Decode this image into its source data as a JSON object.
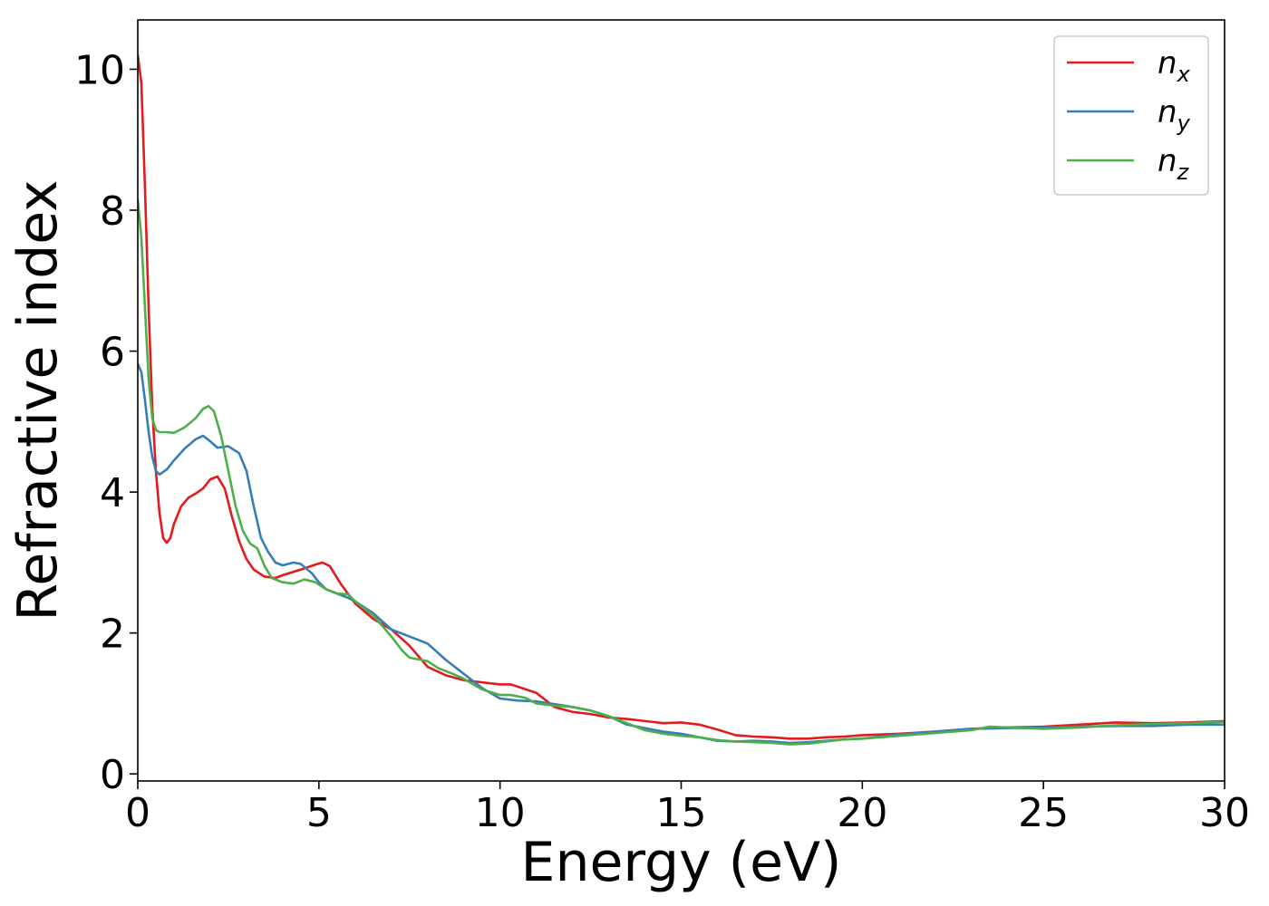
{
  "chart_data": {
    "type": "line",
    "title": "",
    "xlabel": "Energy (eV)",
    "ylabel": "Refractive index",
    "xlim": [
      0,
      30
    ],
    "ylim": [
      -0.1,
      10.7
    ],
    "xticks": [
      0,
      5,
      10,
      15,
      20,
      25,
      30
    ],
    "yticks": [
      0,
      2,
      4,
      6,
      8,
      10
    ],
    "grid": false,
    "legend_position": "top-right",
    "series": [
      {
        "name": "n_x",
        "legend_base": "n",
        "legend_sub": "x",
        "color": "#e41a1c",
        "points": [
          [
            0,
            10.2
          ],
          [
            0.1,
            9.8
          ],
          [
            0.2,
            8.3
          ],
          [
            0.3,
            6.6
          ],
          [
            0.4,
            5.2
          ],
          [
            0.5,
            4.3
          ],
          [
            0.6,
            3.7
          ],
          [
            0.7,
            3.35
          ],
          [
            0.8,
            3.28
          ],
          [
            0.9,
            3.35
          ],
          [
            1.0,
            3.55
          ],
          [
            1.2,
            3.8
          ],
          [
            1.4,
            3.92
          ],
          [
            1.6,
            3.98
          ],
          [
            1.8,
            4.05
          ],
          [
            2.0,
            4.18
          ],
          [
            2.2,
            4.22
          ],
          [
            2.4,
            4.05
          ],
          [
            2.6,
            3.65
          ],
          [
            2.8,
            3.3
          ],
          [
            3.0,
            3.05
          ],
          [
            3.2,
            2.9
          ],
          [
            3.5,
            2.8
          ],
          [
            3.8,
            2.78
          ],
          [
            4.0,
            2.82
          ],
          [
            4.5,
            2.9
          ],
          [
            4.9,
            2.97
          ],
          [
            5.1,
            3.0
          ],
          [
            5.3,
            2.95
          ],
          [
            5.6,
            2.7
          ],
          [
            6.0,
            2.42
          ],
          [
            6.5,
            2.2
          ],
          [
            7.0,
            2.05
          ],
          [
            7.5,
            1.82
          ],
          [
            8.0,
            1.52
          ],
          [
            8.5,
            1.4
          ],
          [
            9.0,
            1.33
          ],
          [
            9.5,
            1.3
          ],
          [
            10.0,
            1.27
          ],
          [
            10.3,
            1.27
          ],
          [
            10.6,
            1.22
          ],
          [
            11.0,
            1.15
          ],
          [
            11.5,
            0.95
          ],
          [
            12.0,
            0.88
          ],
          [
            12.5,
            0.85
          ],
          [
            13.0,
            0.8
          ],
          [
            13.5,
            0.78
          ],
          [
            14.0,
            0.75
          ],
          [
            14.5,
            0.72
          ],
          [
            15.0,
            0.73
          ],
          [
            15.5,
            0.7
          ],
          [
            16.0,
            0.63
          ],
          [
            16.5,
            0.55
          ],
          [
            17.0,
            0.53
          ],
          [
            17.5,
            0.52
          ],
          [
            18.0,
            0.5
          ],
          [
            18.5,
            0.5
          ],
          [
            19.0,
            0.52
          ],
          [
            19.5,
            0.53
          ],
          [
            20.0,
            0.55
          ],
          [
            20.5,
            0.56
          ],
          [
            21.0,
            0.57
          ],
          [
            22.0,
            0.6
          ],
          [
            23.0,
            0.64
          ],
          [
            24.0,
            0.66
          ],
          [
            25.0,
            0.67
          ],
          [
            26.0,
            0.7
          ],
          [
            27.0,
            0.73
          ],
          [
            28.0,
            0.72
          ],
          [
            29.0,
            0.73
          ],
          [
            30.0,
            0.75
          ]
        ]
      },
      {
        "name": "n_y",
        "legend_base": "n",
        "legend_sub": "y",
        "color": "#377eb8",
        "points": [
          [
            0,
            5.82
          ],
          [
            0.1,
            5.7
          ],
          [
            0.2,
            5.3
          ],
          [
            0.3,
            4.85
          ],
          [
            0.4,
            4.5
          ],
          [
            0.5,
            4.3
          ],
          [
            0.6,
            4.25
          ],
          [
            0.8,
            4.32
          ],
          [
            1.0,
            4.45
          ],
          [
            1.3,
            4.62
          ],
          [
            1.6,
            4.75
          ],
          [
            1.8,
            4.8
          ],
          [
            2.0,
            4.72
          ],
          [
            2.2,
            4.63
          ],
          [
            2.5,
            4.65
          ],
          [
            2.8,
            4.55
          ],
          [
            3.0,
            4.3
          ],
          [
            3.2,
            3.8
          ],
          [
            3.4,
            3.35
          ],
          [
            3.6,
            3.15
          ],
          [
            3.8,
            3.0
          ],
          [
            4.0,
            2.96
          ],
          [
            4.3,
            3.0
          ],
          [
            4.5,
            2.98
          ],
          [
            4.8,
            2.85
          ],
          [
            5.0,
            2.72
          ],
          [
            5.2,
            2.62
          ],
          [
            5.5,
            2.56
          ],
          [
            5.8,
            2.5
          ],
          [
            6.0,
            2.45
          ],
          [
            6.5,
            2.28
          ],
          [
            7.0,
            2.05
          ],
          [
            7.5,
            1.95
          ],
          [
            8.0,
            1.85
          ],
          [
            8.5,
            1.62
          ],
          [
            9.0,
            1.42
          ],
          [
            9.5,
            1.22
          ],
          [
            10.0,
            1.07
          ],
          [
            10.5,
            1.04
          ],
          [
            11.0,
            1.03
          ],
          [
            11.5,
            0.99
          ],
          [
            12.0,
            0.95
          ],
          [
            12.5,
            0.9
          ],
          [
            13.0,
            0.82
          ],
          [
            13.5,
            0.7
          ],
          [
            14.0,
            0.65
          ],
          [
            14.5,
            0.6
          ],
          [
            15.0,
            0.57
          ],
          [
            15.5,
            0.52
          ],
          [
            16.0,
            0.47
          ],
          [
            16.5,
            0.46
          ],
          [
            17.0,
            0.47
          ],
          [
            17.5,
            0.46
          ],
          [
            18.0,
            0.44
          ],
          [
            18.5,
            0.45
          ],
          [
            19.0,
            0.47
          ],
          [
            19.5,
            0.49
          ],
          [
            20.0,
            0.5
          ],
          [
            21.0,
            0.56
          ],
          [
            22.0,
            0.6
          ],
          [
            23.0,
            0.64
          ],
          [
            24.0,
            0.65
          ],
          [
            25.0,
            0.66
          ],
          [
            26.0,
            0.67
          ],
          [
            27.0,
            0.68
          ],
          [
            28.0,
            0.68
          ],
          [
            29.0,
            0.7
          ],
          [
            30.0,
            0.7
          ]
        ]
      },
      {
        "name": "n_z",
        "legend_base": "n",
        "legend_sub": "z",
        "color": "#4daf4a",
        "points": [
          [
            0,
            8.15
          ],
          [
            0.1,
            7.6
          ],
          [
            0.2,
            6.6
          ],
          [
            0.3,
            5.6
          ],
          [
            0.4,
            5.05
          ],
          [
            0.5,
            4.88
          ],
          [
            0.6,
            4.85
          ],
          [
            0.8,
            4.85
          ],
          [
            1.0,
            4.84
          ],
          [
            1.3,
            4.92
          ],
          [
            1.6,
            5.05
          ],
          [
            1.8,
            5.18
          ],
          [
            1.95,
            5.22
          ],
          [
            2.1,
            5.15
          ],
          [
            2.3,
            4.8
          ],
          [
            2.5,
            4.3
          ],
          [
            2.7,
            3.8
          ],
          [
            2.9,
            3.45
          ],
          [
            3.1,
            3.27
          ],
          [
            3.3,
            3.2
          ],
          [
            3.5,
            2.95
          ],
          [
            3.7,
            2.78
          ],
          [
            4.0,
            2.72
          ],
          [
            4.3,
            2.7
          ],
          [
            4.6,
            2.76
          ],
          [
            4.9,
            2.72
          ],
          [
            5.2,
            2.62
          ],
          [
            5.5,
            2.56
          ],
          [
            5.8,
            2.55
          ],
          [
            6.0,
            2.45
          ],
          [
            6.5,
            2.25
          ],
          [
            7.0,
            1.95
          ],
          [
            7.3,
            1.75
          ],
          [
            7.5,
            1.65
          ],
          [
            8.0,
            1.6
          ],
          [
            8.3,
            1.5
          ],
          [
            8.7,
            1.42
          ],
          [
            9.0,
            1.35
          ],
          [
            9.5,
            1.2
          ],
          [
            10.0,
            1.12
          ],
          [
            10.3,
            1.12
          ],
          [
            10.7,
            1.08
          ],
          [
            11.0,
            1.0
          ],
          [
            11.5,
            0.97
          ],
          [
            12.0,
            0.95
          ],
          [
            12.5,
            0.9
          ],
          [
            13.0,
            0.82
          ],
          [
            13.5,
            0.72
          ],
          [
            14.0,
            0.62
          ],
          [
            14.5,
            0.57
          ],
          [
            15.0,
            0.54
          ],
          [
            15.5,
            0.52
          ],
          [
            16.0,
            0.48
          ],
          [
            16.5,
            0.46
          ],
          [
            17.0,
            0.45
          ],
          [
            17.5,
            0.44
          ],
          [
            18.0,
            0.42
          ],
          [
            18.5,
            0.43
          ],
          [
            19.0,
            0.46
          ],
          [
            19.5,
            0.49
          ],
          [
            20.0,
            0.5
          ],
          [
            21.0,
            0.54
          ],
          [
            22.0,
            0.58
          ],
          [
            23.0,
            0.62
          ],
          [
            23.5,
            0.67
          ],
          [
            24.0,
            0.66
          ],
          [
            25.0,
            0.64
          ],
          [
            26.0,
            0.66
          ],
          [
            27.0,
            0.69
          ],
          [
            28.0,
            0.71
          ],
          [
            29.0,
            0.72
          ],
          [
            30.0,
            0.74
          ]
        ]
      }
    ]
  }
}
